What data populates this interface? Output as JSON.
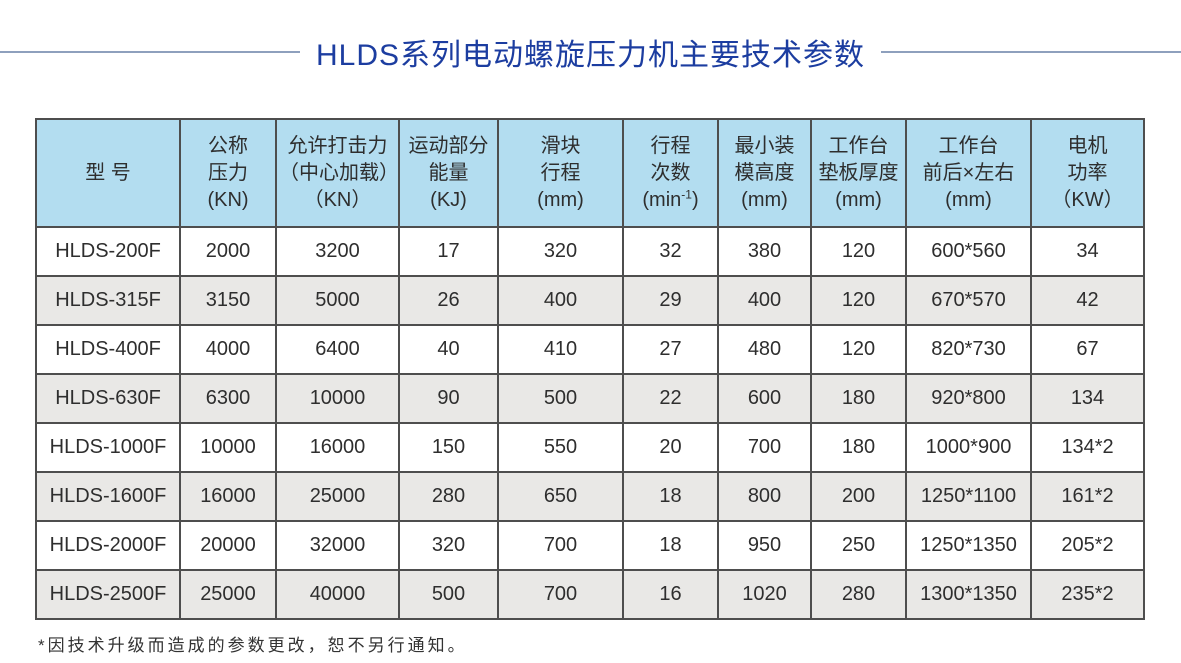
{
  "title": "HLDS系列电动螺旋压力机主要技术参数",
  "colors": {
    "title_blue": "#1c3da0",
    "rule_line": "#8ea0bd",
    "header_bg": "#b3ddf0",
    "row_alt_bg": "#e9e8e6",
    "border": "#4e4e4e",
    "text": "#2e2e2e"
  },
  "table": {
    "columns": [
      {
        "id": "model",
        "lines": [
          "型 号"
        ]
      },
      {
        "id": "nominal-pressure",
        "lines": [
          "公称",
          "压力",
          "(KN)"
        ]
      },
      {
        "id": "allowed-strike-force",
        "lines": [
          "允许打击力",
          "（中心加载）",
          "（KN）"
        ]
      },
      {
        "id": "moving-parts-energy",
        "lines": [
          "运动部分",
          "能量",
          "(KJ)"
        ]
      },
      {
        "id": "slide-stroke",
        "lines": [
          "滑块",
          "行程",
          "(mm)"
        ]
      },
      {
        "id": "stroke-rate",
        "lines": [
          "行程",
          "次数"
        ],
        "sup_line": {
          "pre": "(min",
          "sup": "-1",
          "post": ")"
        }
      },
      {
        "id": "min-die-height",
        "lines": [
          "最小装",
          "模高度",
          "(mm)"
        ]
      },
      {
        "id": "bolster-thickness",
        "lines": [
          "工作台",
          "垫板厚度",
          "(mm)"
        ]
      },
      {
        "id": "worktable-size",
        "lines": [
          "工作台",
          "前后×左右",
          "(mm)"
        ]
      },
      {
        "id": "motor-power",
        "lines": [
          "电机",
          "功率",
          "（KW）"
        ]
      }
    ],
    "rows": [
      [
        "HLDS-200F",
        "2000",
        "3200",
        "17",
        "320",
        "32",
        "380",
        "120",
        "600*560",
        "34"
      ],
      [
        "HLDS-315F",
        "3150",
        "5000",
        "26",
        "400",
        "29",
        "400",
        "120",
        "670*570",
        "42"
      ],
      [
        "HLDS-400F",
        "4000",
        "6400",
        "40",
        "410",
        "27",
        "480",
        "120",
        "820*730",
        "67"
      ],
      [
        "HLDS-630F",
        "6300",
        "10000",
        "90",
        "500",
        "22",
        "600",
        "180",
        "920*800",
        "134"
      ],
      [
        "HLDS-1000F",
        "10000",
        "16000",
        "150",
        "550",
        "20",
        "700",
        "180",
        "1000*900",
        "134*2"
      ],
      [
        "HLDS-1600F",
        "16000",
        "25000",
        "280",
        "650",
        "18",
        "800",
        "200",
        "1250*1100",
        "161*2"
      ],
      [
        "HLDS-2000F",
        "20000",
        "32000",
        "320",
        "700",
        "18",
        "950",
        "250",
        "1250*1350",
        "205*2"
      ],
      [
        "HLDS-2500F",
        "25000",
        "40000",
        "500",
        "700",
        "16",
        "1020",
        "280",
        "1300*1350",
        "235*2"
      ]
    ]
  },
  "footnote": "*因技术升级而造成的参数更改，恕不另行通知。"
}
